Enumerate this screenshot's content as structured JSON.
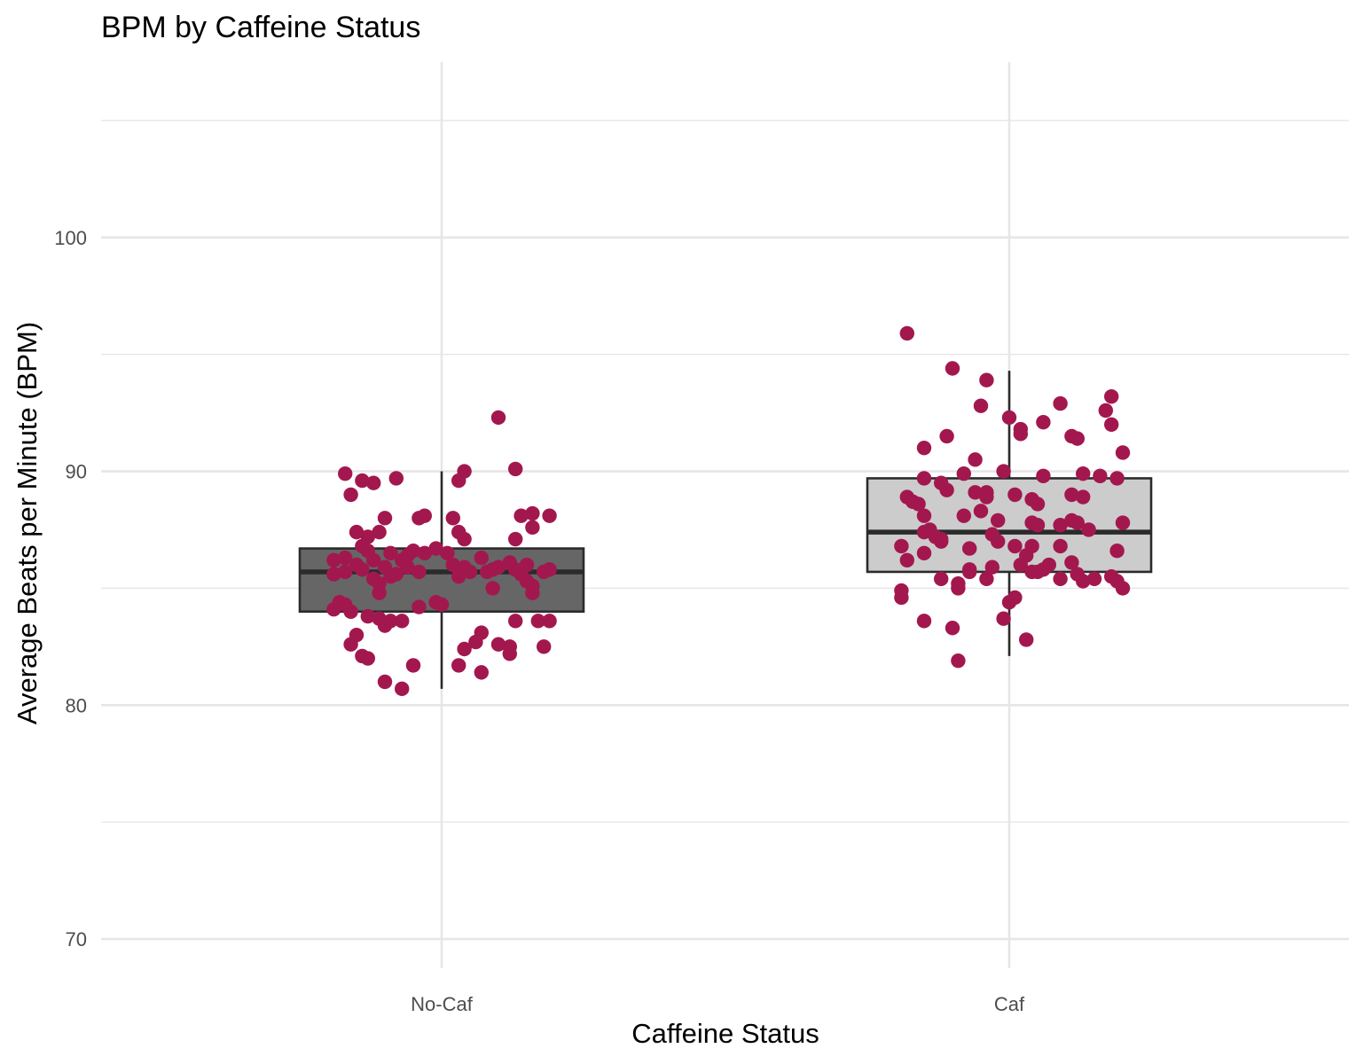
{
  "chart_data": {
    "type": "box",
    "title": "BPM by Caffeine Status",
    "xlabel": "Caffeine Status",
    "ylabel": "Average Beats per Minute (BPM)",
    "categories": [
      "No-Caf",
      "Caf"
    ],
    "ylim": [
      68.7,
      107.5
    ],
    "yticks": [
      70,
      80,
      90,
      100
    ],
    "grid": true,
    "colors": {
      "points": "#a3174f",
      "box_nocaf": "#666666",
      "box_caf": "#cccccc",
      "outline": "#2b2b2b",
      "grid": "#e6e6e6"
    },
    "boxes": [
      {
        "category": "No-Caf",
        "whisker_low": 80.7,
        "q1": 84.0,
        "median": 85.7,
        "q3": 86.7,
        "whisker_high": 90.0
      },
      {
        "category": "Caf",
        "whisker_low": 82.1,
        "q1": 85.7,
        "median": 87.4,
        "q3": 89.7,
        "whisker_high": 94.3
      }
    ],
    "points": [
      [
        [
          -0.17,
          89.9
        ],
        [
          -0.16,
          89.0
        ],
        [
          -0.14,
          89.6
        ],
        [
          -0.12,
          89.5
        ],
        [
          -0.08,
          89.7
        ],
        [
          0.03,
          89.6
        ],
        [
          0.04,
          90.0
        ],
        [
          0.13,
          90.1
        ],
        [
          0.1,
          92.3
        ],
        [
          -0.15,
          87.4
        ],
        [
          -0.13,
          87.2
        ],
        [
          -0.11,
          87.4
        ],
        [
          -0.1,
          88.0
        ],
        [
          -0.04,
          88.0
        ],
        [
          -0.03,
          88.1
        ],
        [
          0.02,
          88.0
        ],
        [
          0.03,
          87.4
        ],
        [
          0.04,
          87.1
        ],
        [
          0.13,
          87.1
        ],
        [
          0.14,
          88.1
        ],
        [
          0.16,
          87.6
        ],
        [
          0.16,
          88.2
        ],
        [
          0.19,
          88.1
        ],
        [
          -0.19,
          86.2
        ],
        [
          -0.17,
          86.3
        ],
        [
          -0.15,
          86.0
        ],
        [
          -0.14,
          86.8
        ],
        [
          -0.13,
          86.6
        ],
        [
          -0.12,
          86.2
        ],
        [
          -0.1,
          85.9
        ],
        [
          -0.09,
          86.5
        ],
        [
          -0.07,
          86.2
        ],
        [
          -0.06,
          86.4
        ],
        [
          -0.05,
          86.6
        ],
        [
          -0.03,
          86.5
        ],
        [
          -0.01,
          86.7
        ],
        [
          0.01,
          86.5
        ],
        [
          0.02,
          86.0
        ],
        [
          0.04,
          85.9
        ],
        [
          0.07,
          86.3
        ],
        [
          0.09,
          85.8
        ],
        [
          0.12,
          86.1
        ],
        [
          0.14,
          85.6
        ],
        [
          0.15,
          86.0
        ],
        [
          0.18,
          85.7
        ],
        [
          0.19,
          85.8
        ],
        [
          -0.19,
          85.6
        ],
        [
          -0.17,
          85.7
        ],
        [
          -0.14,
          85.8
        ],
        [
          -0.12,
          85.4
        ],
        [
          -0.11,
          85.2
        ],
        [
          -0.09,
          85.5
        ],
        [
          -0.08,
          85.6
        ],
        [
          -0.06,
          85.9
        ],
        [
          -0.04,
          85.7
        ],
        [
          0.03,
          85.5
        ],
        [
          0.05,
          85.7
        ],
        [
          0.08,
          85.7
        ],
        [
          0.1,
          85.9
        ],
        [
          0.13,
          85.8
        ],
        [
          0.15,
          85.3
        ],
        [
          0.16,
          85.1
        ],
        [
          0.16,
          84.8
        ],
        [
          -0.11,
          84.8
        ],
        [
          0.09,
          85.0
        ],
        [
          -0.19,
          84.1
        ],
        [
          -0.18,
          84.4
        ],
        [
          -0.17,
          84.3
        ],
        [
          -0.16,
          84.0
        ],
        [
          -0.13,
          83.8
        ],
        [
          -0.11,
          83.7
        ],
        [
          -0.1,
          83.4
        ],
        [
          -0.09,
          83.6
        ],
        [
          -0.07,
          83.6
        ],
        [
          -0.04,
          84.2
        ],
        [
          -0.01,
          84.4
        ],
        [
          0.0,
          84.3
        ],
        [
          0.13,
          83.6
        ],
        [
          0.17,
          83.6
        ],
        [
          0.19,
          83.6
        ],
        [
          -0.16,
          82.6
        ],
        [
          -0.15,
          83.0
        ],
        [
          -0.14,
          82.1
        ],
        [
          -0.13,
          82.0
        ],
        [
          -0.05,
          81.7
        ],
        [
          0.03,
          81.7
        ],
        [
          0.04,
          82.4
        ],
        [
          0.06,
          82.7
        ],
        [
          0.07,
          83.1
        ],
        [
          0.07,
          81.4
        ],
        [
          0.1,
          82.6
        ],
        [
          0.12,
          82.5
        ],
        [
          0.12,
          82.2
        ],
        [
          0.18,
          82.5
        ],
        [
          -0.1,
          81.0
        ],
        [
          -0.07,
          80.7
        ]
      ],
      [
        [
          -0.18,
          88.9
        ],
        [
          -0.17,
          88.7
        ],
        [
          -0.16,
          88.6
        ],
        [
          -0.15,
          88.1
        ],
        [
          -0.15,
          89.7
        ],
        [
          -0.12,
          89.5
        ],
        [
          -0.11,
          89.2
        ],
        [
          -0.08,
          89.9
        ],
        [
          -0.06,
          90.5
        ],
        [
          -0.06,
          89.1
        ],
        [
          -0.04,
          89.1
        ],
        [
          -0.04,
          88.9
        ],
        [
          -0.01,
          90.0
        ],
        [
          0.01,
          89.0
        ],
        [
          0.04,
          88.8
        ],
        [
          0.05,
          88.6
        ],
        [
          0.06,
          89.8
        ],
        [
          0.11,
          89.0
        ],
        [
          0.13,
          89.9
        ],
        [
          0.13,
          88.9
        ],
        [
          0.16,
          89.8
        ],
        [
          0.19,
          89.7
        ],
        [
          -0.15,
          91.0
        ],
        [
          -0.11,
          91.5
        ],
        [
          -0.05,
          92.8
        ],
        [
          -0.04,
          93.9
        ],
        [
          -0.1,
          94.4
        ],
        [
          -0.18,
          95.9
        ],
        [
          0.0,
          92.3
        ],
        [
          0.02,
          91.6
        ],
        [
          0.02,
          91.8
        ],
        [
          0.06,
          92.1
        ],
        [
          0.09,
          92.9
        ],
        [
          0.11,
          91.5
        ],
        [
          0.12,
          91.4
        ],
        [
          0.17,
          92.6
        ],
        [
          0.18,
          92.0
        ],
        [
          0.18,
          93.2
        ],
        [
          0.2,
          90.8
        ],
        [
          -0.19,
          86.8
        ],
        [
          -0.18,
          86.2
        ],
        [
          -0.15,
          86.5
        ],
        [
          -0.15,
          87.4
        ],
        [
          -0.14,
          87.5
        ],
        [
          -0.13,
          87.2
        ],
        [
          -0.12,
          87.0
        ],
        [
          -0.12,
          87.1
        ],
        [
          -0.08,
          88.1
        ],
        [
          -0.07,
          86.7
        ],
        [
          -0.05,
          88.3
        ],
        [
          -0.03,
          87.3
        ],
        [
          -0.02,
          87.9
        ],
        [
          -0.02,
          87.0
        ],
        [
          0.01,
          86.8
        ],
        [
          0.03,
          86.4
        ],
        [
          0.04,
          86.8
        ],
        [
          0.04,
          87.8
        ],
        [
          0.05,
          87.7
        ],
        [
          0.09,
          86.8
        ],
        [
          0.09,
          87.7
        ],
        [
          0.11,
          87.9
        ],
        [
          0.12,
          87.8
        ],
        [
          0.14,
          87.5
        ],
        [
          0.19,
          86.6
        ],
        [
          0.2,
          87.8
        ],
        [
          -0.12,
          85.4
        ],
        [
          -0.09,
          85.2
        ],
        [
          -0.07,
          85.8
        ],
        [
          -0.07,
          85.7
        ],
        [
          -0.04,
          85.4
        ],
        [
          -0.03,
          85.9
        ],
        [
          0.02,
          86.0
        ],
        [
          0.04,
          85.7
        ],
        [
          0.05,
          85.7
        ],
        [
          0.06,
          85.8
        ],
        [
          0.07,
          86.0
        ],
        [
          0.09,
          85.4
        ],
        [
          0.11,
          86.1
        ],
        [
          0.12,
          85.6
        ],
        [
          0.13,
          85.3
        ],
        [
          0.15,
          85.4
        ],
        [
          0.18,
          85.5
        ],
        [
          0.19,
          85.3
        ],
        [
          0.2,
          85.0
        ],
        [
          -0.19,
          84.9
        ],
        [
          -0.19,
          84.6
        ],
        [
          -0.09,
          85.0
        ],
        [
          0.01,
          84.6
        ],
        [
          0.0,
          84.4
        ],
        [
          -0.15,
          83.6
        ],
        [
          -0.01,
          83.7
        ],
        [
          -0.1,
          83.3
        ],
        [
          0.03,
          82.8
        ],
        [
          -0.09,
          81.9
        ]
      ]
    ]
  }
}
